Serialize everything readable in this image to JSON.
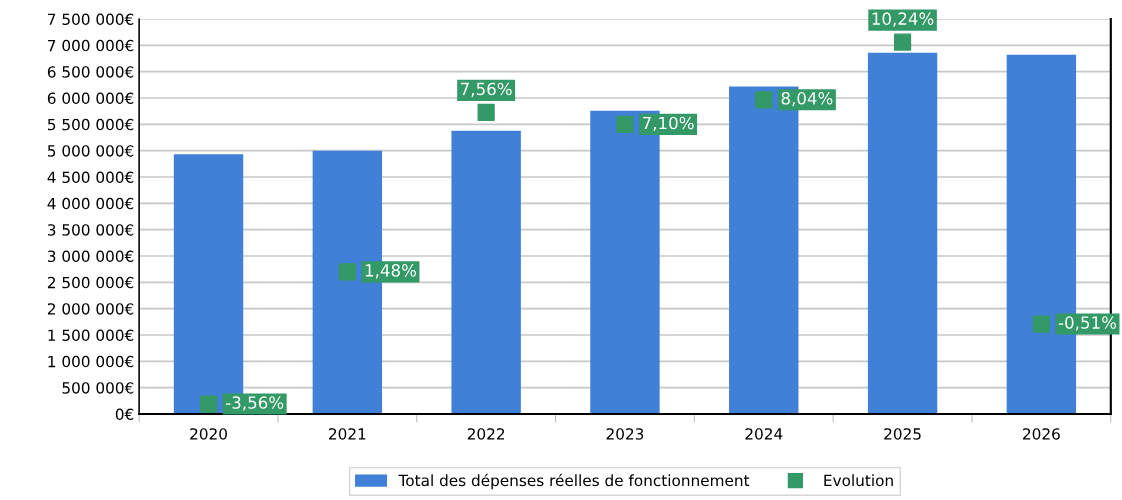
{
  "chart_data": {
    "type": "bar",
    "categories": [
      "2020",
      "2021",
      "2022",
      "2023",
      "2024",
      "2025",
      "2026"
    ],
    "series": [
      {
        "name": "Total des dépenses réelles de fonctionnement",
        "color": "#4080d6",
        "values": [
          4930000,
          5000000,
          5380000,
          5760000,
          6220000,
          6860000,
          6820000
        ]
      },
      {
        "name": "Evolution",
        "type": "scatter",
        "axis": "y2",
        "marker": "square",
        "color": "#339966",
        "values": [
          -3.56,
          1.48,
          7.56,
          7.1,
          8.04,
          10.24,
          -0.51
        ],
        "value_labels": [
          "-3,56%",
          "1,48%",
          "7,56%",
          "7,10%",
          "8,04%",
          "10,24%",
          "-0,51%"
        ]
      }
    ],
    "ylim": [
      0,
      7500000
    ],
    "yticks": [
      {
        "value": 0,
        "label": "0€"
      },
      {
        "value": 500000,
        "label": "500 000€"
      },
      {
        "value": 1000000,
        "label": "1 000 000€"
      },
      {
        "value": 1500000,
        "label": "1 500 000€"
      },
      {
        "value": 2000000,
        "label": "2 000 000€"
      },
      {
        "value": 2500000,
        "label": "2 500 000€"
      },
      {
        "value": 3000000,
        "label": "3 000 000€"
      },
      {
        "value": 3500000,
        "label": "3 500 000€"
      },
      {
        "value": 4000000,
        "label": "4 000 000€"
      },
      {
        "value": 4500000,
        "label": "4 500 000€"
      },
      {
        "value": 5000000,
        "label": "5 000 000€"
      },
      {
        "value": 5500000,
        "label": "5 500 000€"
      },
      {
        "value": 6000000,
        "label": "6 000 000€"
      },
      {
        "value": 6500000,
        "label": "6 500 000€"
      },
      {
        "value": 7000000,
        "label": "7 000 000€"
      },
      {
        "value": 7500000,
        "label": "7 500 000€"
      }
    ],
    "y2lim": [
      -3.94,
      11.12
    ],
    "grid": "y",
    "legend": "bottom"
  }
}
